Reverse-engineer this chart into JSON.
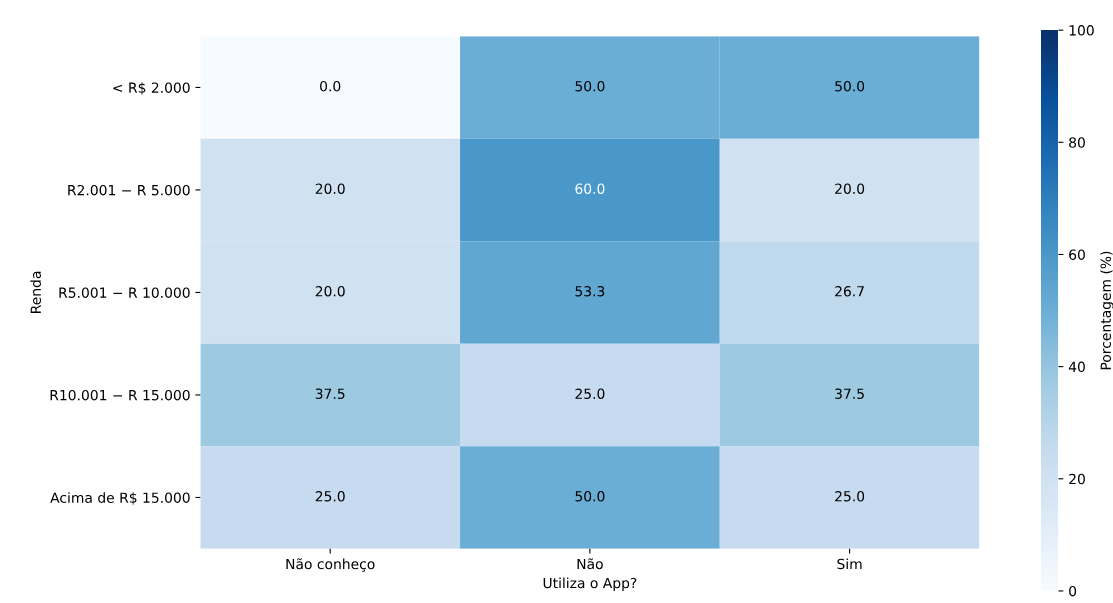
{
  "chart_data": {
    "type": "heatmap",
    "xlabel": "Utiliza o App?",
    "ylabel": "Renda",
    "clabel": "Porcentagem (%)",
    "categories": [
      "Não conheço",
      "Não",
      "Sim"
    ],
    "y_categories": [
      "< R$ 2.000",
      "R2.001 − R 5.000",
      "R5.001 − R 10.000",
      "R10.001 − R 15.000",
      "Acima de R$ 15.000"
    ],
    "cells": [
      [
        0.0,
        50.0,
        50.0
      ],
      [
        20.0,
        60.0,
        20.0
      ],
      [
        20.0,
        53.3,
        26.7
      ],
      [
        37.5,
        25.0,
        37.5
      ],
      [
        25.0,
        50.0,
        25.0
      ]
    ],
    "cell_labels": [
      [
        "0.0",
        "50.0",
        "50.0"
      ],
      [
        "20.0",
        "60.0",
        "20.0"
      ],
      [
        "20.0",
        "53.3",
        "26.7"
      ],
      [
        "37.5",
        "25.0",
        "37.5"
      ],
      [
        "25.0",
        "50.0",
        "25.0"
      ]
    ],
    "clim": [
      0,
      100
    ],
    "cticks": [
      0,
      20,
      40,
      60,
      80,
      100
    ]
  }
}
